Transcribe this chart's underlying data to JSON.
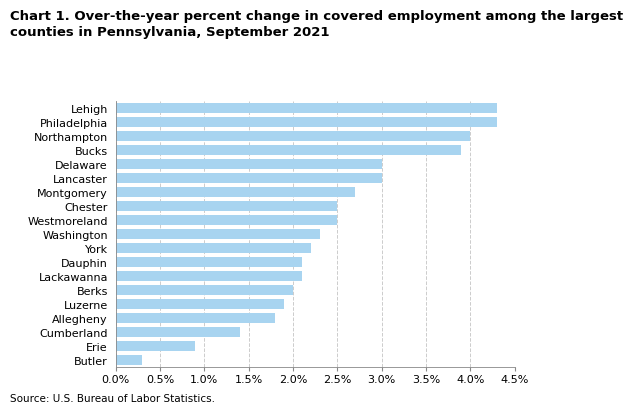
{
  "title_line1": "Chart 1. Over-the-year percent change in covered employment among the largest",
  "title_line2": "counties in Pennsylvania, September 2021",
  "counties": [
    "Lehigh",
    "Philadelphia",
    "Northampton",
    "Bucks",
    "Delaware",
    "Lancaster",
    "Montgomery",
    "Chester",
    "Westmoreland",
    "Washington",
    "York",
    "Dauphin",
    "Lackawanna",
    "Berks",
    "Luzerne",
    "Allegheny",
    "Cumberland",
    "Erie",
    "Butler"
  ],
  "values": [
    0.043,
    0.043,
    0.04,
    0.039,
    0.03,
    0.03,
    0.027,
    0.025,
    0.025,
    0.023,
    0.022,
    0.021,
    0.021,
    0.02,
    0.019,
    0.018,
    0.014,
    0.009,
    0.003
  ],
  "bar_color": "#a8d4f0",
  "background_color": "#ffffff",
  "xlim": [
    0,
    0.045
  ],
  "xticks": [
    0.0,
    0.005,
    0.01,
    0.015,
    0.02,
    0.025,
    0.03,
    0.035,
    0.04,
    0.045
  ],
  "xtick_labels": [
    "0.0%",
    "0.5%",
    "1.0%",
    "1.5%",
    "2.0%",
    "2.5%",
    "3.0%",
    "3.5%",
    "4.0%",
    "4.5%"
  ],
  "source_text": "Source: U.S. Bureau of Labor Statistics.",
  "title_fontsize": 9.5,
  "tick_fontsize": 8,
  "source_fontsize": 7.5
}
